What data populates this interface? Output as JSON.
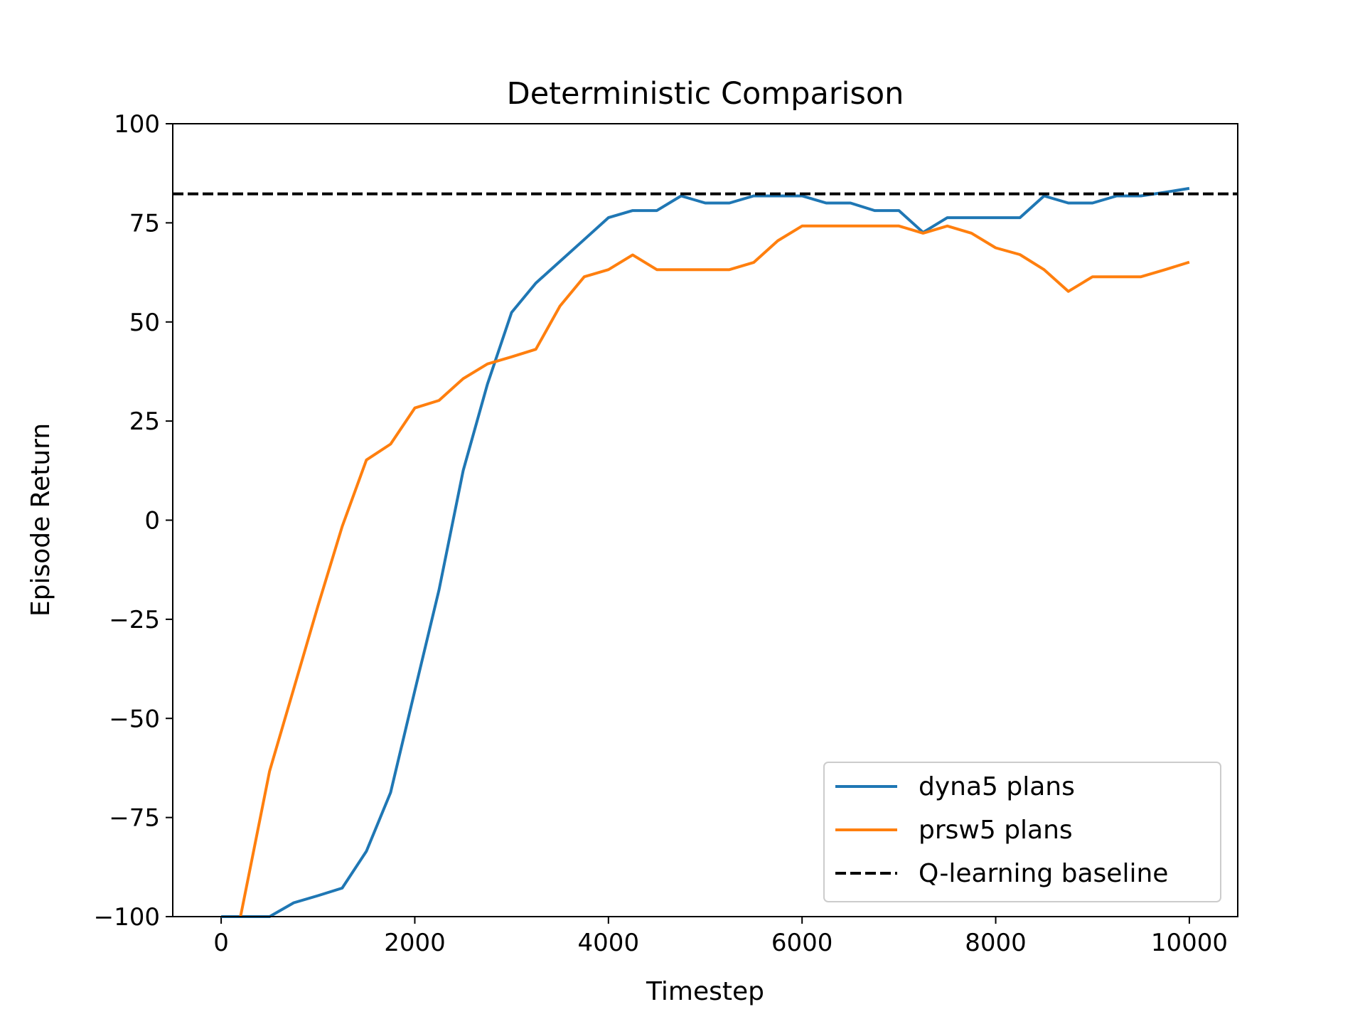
{
  "chart_data": {
    "type": "line",
    "title": "Deterministic Comparison",
    "xlabel": "Timestep",
    "ylabel": "Episode Return",
    "xlim": [
      -500,
      10500
    ],
    "ylim": [
      -100,
      100
    ],
    "xticks": [
      0,
      2000,
      4000,
      6000,
      8000,
      10000
    ],
    "xtick_labels": [
      "0",
      "2000",
      "4000",
      "6000",
      "8000",
      "10000"
    ],
    "yticks": [
      -100,
      -75,
      -50,
      -25,
      0,
      25,
      50,
      75,
      100
    ],
    "ytick_labels": [
      "−100",
      "−75",
      "−50",
      "−25",
      "0",
      "25",
      "50",
      "75",
      "100"
    ],
    "grid": false,
    "legend_position": "lower-right",
    "series": [
      {
        "name": "dyna5 plans",
        "color": "#1f77b4",
        "style": "solid",
        "x": [
          0,
          250,
          500,
          750,
          1000,
          1250,
          1500,
          1750,
          2000,
          2250,
          2500,
          2750,
          3000,
          3250,
          3500,
          3750,
          4000,
          4250,
          4500,
          4750,
          5000,
          5250,
          5500,
          5750,
          6000,
          6250,
          6500,
          6750,
          7000,
          7250,
          7500,
          7750,
          8000,
          8250,
          8500,
          8750,
          9000,
          9250,
          9500,
          9750,
          10000
        ],
        "y": [
          -100,
          -100,
          -100,
          -96.5,
          -94.7,
          -92.8,
          -83.5,
          -68.7,
          -43,
          -17.6,
          12.5,
          34.3,
          52.4,
          59.8,
          65.3,
          70.8,
          76.3,
          78.1,
          78.1,
          81.8,
          80,
          80,
          81.8,
          81.8,
          81.8,
          80,
          80,
          78.1,
          78.1,
          72.6,
          76.3,
          76.3,
          76.3,
          76.3,
          81.8,
          80,
          80,
          81.8,
          81.8,
          82.7,
          83.7
        ]
      },
      {
        "name": "prsw5 plans",
        "color": "#ff7f0e",
        "style": "solid",
        "x": [
          200,
          500,
          750,
          1000,
          1250,
          1500,
          1750,
          2000,
          2250,
          2500,
          2750,
          3000,
          3250,
          3500,
          3750,
          4000,
          4250,
          4500,
          4750,
          5000,
          5250,
          5500,
          5750,
          6000,
          6250,
          6500,
          6750,
          7000,
          7250,
          7500,
          7750,
          8000,
          8250,
          8500,
          8750,
          9000,
          9250,
          9500,
          9750,
          10000
        ],
        "y": [
          -100,
          -63.3,
          -42.5,
          -21.6,
          -1.6,
          15.2,
          19.2,
          28.3,
          30.2,
          35.7,
          39.4,
          41.2,
          43.1,
          54,
          61.4,
          63.2,
          66.9,
          63.2,
          63.2,
          63.2,
          63.2,
          65,
          70.5,
          74.2,
          74.2,
          74.2,
          74.2,
          74.2,
          72.4,
          74.2,
          72.4,
          68.7,
          67,
          63.2,
          57.7,
          61.4,
          61.4,
          61.4,
          63.2,
          65.1
        ]
      },
      {
        "name": "Q-learning baseline",
        "color": "#000000",
        "style": "dashed",
        "y_constant": 82.3
      }
    ]
  }
}
